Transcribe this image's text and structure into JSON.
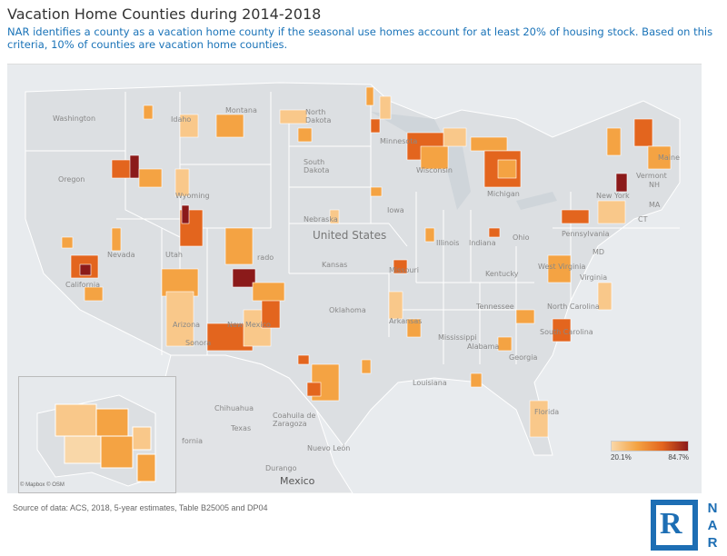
{
  "title": "Vacation Home Counties during 2014-2018",
  "subtitle": "NAR identifies a county as a vacation home county if the seasonal use homes account for at least 20% of housing stock. Based on this criteria, 10% of counties are vacation home counties.",
  "map": {
    "country_label": "United States",
    "states": [
      "Washington",
      "Oregon",
      "California",
      "Nevada",
      "Idaho",
      "Montana",
      "Wyoming",
      "Utah",
      "Arizona",
      "Colorado",
      "New Mexico",
      "North Dakota",
      "South Dakota",
      "Nebraska",
      "Kansas",
      "Oklahoma",
      "Texas",
      "Minnesota",
      "Iowa",
      "Missouri",
      "Arkansas",
      "Louisiana",
      "Wisconsin",
      "Illinois",
      "Michigan",
      "Indiana",
      "Ohio",
      "Kentucky",
      "Tennessee",
      "Mississippi",
      "Alabama",
      "Georgia",
      "Florida",
      "South Carolina",
      "North Carolina",
      "Virginia",
      "West Virginia",
      "Pennsylvania",
      "New York",
      "Vermont",
      "NH",
      "Maine",
      "MA",
      "CT",
      "MD"
    ],
    "abbr": {
      "ut": "Utah",
      "co": "rado",
      "sd": "South\nDakota",
      "nd": "North\nDakota",
      "ms": "Mississippi",
      "ga": "Georgia",
      "mo": "Missouri",
      "ky": "Kentucky",
      "wv": "West Virginia"
    },
    "mexico_labels": [
      "Chihuahua",
      "Coahuila de\nZaragoza",
      "Nuevo León",
      "Durango",
      "Mexico",
      "Sonora",
      "fornia"
    ],
    "credit": "© Mapbox © OSM"
  },
  "legend": {
    "min": "20.1%",
    "max": "84.7%",
    "colors": [
      "#f9d7a8",
      "#f4a343",
      "#e3651e",
      "#8b1a1a"
    ]
  },
  "source": "Source of data: ACS, 2018, 5-year estimates, Table B25005 and DP04",
  "logo": {
    "letter": "R",
    "text": [
      "N",
      "A",
      "R"
    ]
  }
}
